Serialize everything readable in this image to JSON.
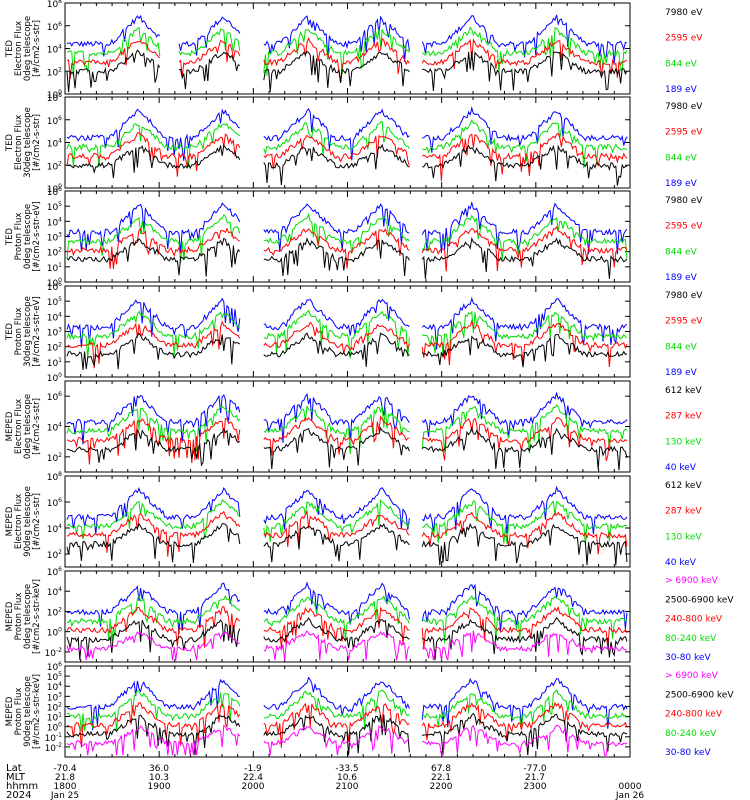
{
  "colors": {
    "black": "#000000",
    "red": "#ff0000",
    "green": "#00dd00",
    "blue": "#0000ff",
    "magenta": "#ff00ff"
  },
  "chart_data": [
    {
      "type": "line",
      "ylabel": [
        "TED",
        "Electron Flux",
        "0deg telescope",
        "[#/cm2-s-str]"
      ],
      "log_ylim": [
        0,
        8
      ],
      "ticks": [
        {
          "e": 0,
          "m": "10"
        },
        {
          "e": 2,
          "m": "10"
        },
        {
          "e": 4,
          "m": "10"
        },
        {
          "e": 6,
          "m": "10"
        },
        {
          "e": 8,
          "m": "10"
        }
      ],
      "legend": [
        {
          "label": "7980 eV",
          "color": "black"
        },
        {
          "label": "2595 eV",
          "color": "red"
        },
        {
          "label": "844 eV",
          "color": "green"
        },
        {
          "label": "189 eV",
          "color": "blue"
        }
      ]
    },
    {
      "type": "line",
      "ylabel": [
        "TED",
        "Electron Flux",
        "30deg telescope",
        "[#/cm2-s-str]"
      ],
      "log_ylim": [
        0,
        8
      ],
      "ticks": [
        {
          "e": 0,
          "m": "10"
        },
        {
          "e": 2,
          "m": "10"
        },
        {
          "e": 4,
          "m": "10"
        },
        {
          "e": 6,
          "m": "10"
        },
        {
          "e": 8,
          "m": "10"
        }
      ],
      "legend": [
        {
          "label": "7980 eV",
          "color": "black"
        },
        {
          "label": "2595 eV",
          "color": "red"
        },
        {
          "label": "844 eV",
          "color": "green"
        },
        {
          "label": "189 eV",
          "color": "blue"
        }
      ]
    },
    {
      "type": "line",
      "ylabel": [
        "TED",
        "Proton Flux",
        "0deg telescope",
        "[#/cm2-s-str-eV]"
      ],
      "log_ylim": [
        0,
        6
      ],
      "ticks": [
        {
          "e": 0,
          "m": "10"
        },
        {
          "e": 1,
          "m": "10"
        },
        {
          "e": 2,
          "m": "10"
        },
        {
          "e": 3,
          "m": "10"
        },
        {
          "e": 4,
          "m": "10"
        },
        {
          "e": 5,
          "m": "10"
        },
        {
          "e": 6,
          "m": "10"
        }
      ],
      "legend": [
        {
          "label": "7980 eV",
          "color": "black"
        },
        {
          "label": "2595 eV",
          "color": "red"
        },
        {
          "label": "844 eV",
          "color": "green"
        },
        {
          "label": "189 eV",
          "color": "blue"
        }
      ]
    },
    {
      "type": "line",
      "ylabel": [
        "TED",
        "Proton Flux",
        "30deg telescope",
        "[#/cm2-s-str-eV]"
      ],
      "log_ylim": [
        0,
        6
      ],
      "ticks": [
        {
          "e": 0,
          "m": "10"
        },
        {
          "e": 1,
          "m": "10"
        },
        {
          "e": 2,
          "m": "10"
        },
        {
          "e": 3,
          "m": "10"
        },
        {
          "e": 4,
          "m": "10"
        },
        {
          "e": 5,
          "m": "10"
        },
        {
          "e": 6,
          "m": "10"
        }
      ],
      "legend": [
        {
          "label": "7980 eV",
          "color": "black"
        },
        {
          "label": "2595 eV",
          "color": "red"
        },
        {
          "label": "844 eV",
          "color": "green"
        },
        {
          "label": "189 eV",
          "color": "blue"
        }
      ]
    },
    {
      "type": "line",
      "ylabel": [
        "MEPED",
        "Electron Flux",
        "0deg telescope",
        "[#/cm2-s-str]"
      ],
      "log_ylim": [
        1,
        7
      ],
      "ticks": [
        {
          "e": 2,
          "m": "10"
        },
        {
          "e": 4,
          "m": "10"
        },
        {
          "e": 6,
          "m": "10"
        }
      ],
      "legend": [
        {
          "label": "612 keV",
          "color": "black"
        },
        {
          "label": "287 keV",
          "color": "red"
        },
        {
          "label": "130 keV",
          "color": "green"
        },
        {
          "label": "40 keV",
          "color": "blue"
        }
      ]
    },
    {
      "type": "line",
      "ylabel": [
        "MEPED",
        "Electron Flux",
        "90deg telescope",
        "[#/cm2-s-str]"
      ],
      "log_ylim": [
        1,
        8
      ],
      "ticks": [
        {
          "e": 2,
          "m": "10"
        },
        {
          "e": 4,
          "m": "10"
        },
        {
          "e": 6,
          "m": "10"
        },
        {
          "e": 8,
          "m": "10"
        }
      ],
      "legend": [
        {
          "label": "612 keV",
          "color": "black"
        },
        {
          "label": "287 keV",
          "color": "red"
        },
        {
          "label": "130 keV",
          "color": "green"
        },
        {
          "label": "40 keV",
          "color": "blue"
        }
      ]
    },
    {
      "type": "line",
      "ylabel": [
        "MEPED",
        "Proton Flux",
        "0deg telescope",
        "[#/cm2-s-str-keV]"
      ],
      "log_ylim": [
        -3,
        6
      ],
      "ticks": [
        {
          "e": -2,
          "m": "10"
        },
        {
          "e": 0,
          "m": "10"
        },
        {
          "e": 2,
          "m": "10"
        },
        {
          "e": 4,
          "m": "10"
        },
        {
          "e": 6,
          "m": "10"
        }
      ],
      "legend": [
        {
          "label": "> 6900 keV",
          "color": "magenta"
        },
        {
          "label": "2500-6900 keV",
          "color": "black"
        },
        {
          "label": "240-800 keV",
          "color": "red"
        },
        {
          "label": "80-240 keV",
          "color": "green"
        },
        {
          "label": "30-80 keV",
          "color": "blue"
        }
      ]
    },
    {
      "type": "line",
      "ylabel": [
        "MEPED",
        "Proton Flux",
        "90deg telescope",
        "[#/cm2-s-str-keV]"
      ],
      "log_ylim": [
        -3,
        6
      ],
      "ticks": [
        {
          "e": -2,
          "m": "10"
        },
        {
          "e": -1,
          "m": "10"
        },
        {
          "e": 0,
          "m": "10"
        },
        {
          "e": 1,
          "m": "10"
        },
        {
          "e": 2,
          "m": "10"
        },
        {
          "e": 3,
          "m": "10"
        },
        {
          "e": 4,
          "m": "10"
        },
        {
          "e": 5,
          "m": "10"
        },
        {
          "e": 6,
          "m": "10"
        }
      ],
      "legend": [
        {
          "label": "> 6900 keV",
          "color": "magenta"
        },
        {
          "label": "2500-6900 keV",
          "color": "black"
        },
        {
          "label": "240-800 keV",
          "color": "red"
        },
        {
          "label": "80-240 keV",
          "color": "green"
        },
        {
          "label": "30-80 keV",
          "color": "blue"
        }
      ]
    }
  ],
  "xaxis": {
    "row_labels": [
      "Lat",
      "MLT",
      "hhmm",
      "2024"
    ],
    "columns": [
      {
        "lat": "-70.4",
        "mlt": "21.8",
        "hhmm": "1800",
        "date": "Jan 25"
      },
      {
        "lat": "36.0",
        "mlt": "10.3",
        "hhmm": "1900",
        "date": ""
      },
      {
        "lat": "-1.9",
        "mlt": "22.4",
        "hhmm": "2000",
        "date": ""
      },
      {
        "lat": "-33.5",
        "mlt": "10.6",
        "hhmm": "2100",
        "date": ""
      },
      {
        "lat": "67.8",
        "mlt": "22.1",
        "hhmm": "2200",
        "date": ""
      },
      {
        "lat": "-77.0",
        "mlt": "21.7",
        "hhmm": "2300",
        "date": ""
      },
      {
        "lat": "",
        "mlt": "",
        "hhmm": "0000",
        "date": "Jan 26"
      }
    ]
  }
}
